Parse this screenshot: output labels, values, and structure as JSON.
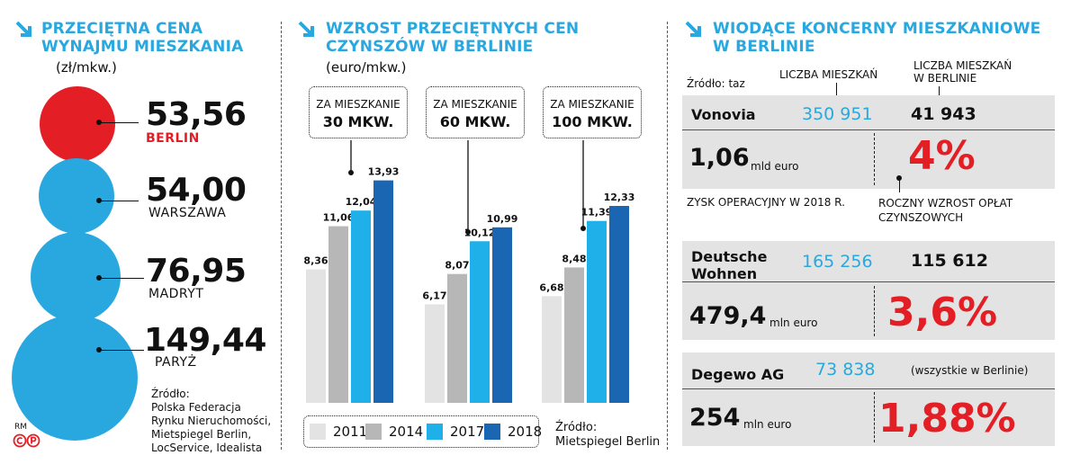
{
  "colors": {
    "blue": "#29a8e0",
    "red": "#e31e24",
    "bar2011": "#e3e3e3",
    "bar2014": "#b7b7b7",
    "bar2017": "#1fb0ea",
    "bar2018": "#1a66b2"
  },
  "panel1": {
    "title_l1": "PRZECIĘTNA CENA",
    "title_l2": "WYNAJMU MIESZKANIA",
    "unit": "(zł/mkw.)",
    "cities": [
      {
        "value": "53,56",
        "name": "BERLIN"
      },
      {
        "value": "54,00",
        "name": "WARSZAWA"
      },
      {
        "value": "76,95",
        "name": "MADRYT"
      },
      {
        "value": "149,44",
        "name": "PARYŻ"
      }
    ],
    "source": [
      "Źródło:",
      "Polska Federacja",
      "Rynku Nieruchomości,",
      "Mietspiegel Berlin,",
      "LocService, Idealista"
    ],
    "credit": "RM",
    "copyright_icon": "copyright-p-icon"
  },
  "panel2": {
    "title_l1": "WZROST PRZECIĘTNYCH CEN",
    "title_l2": "CZYNSZÓW W BERLINIE",
    "unit": "(euro/mkw.)",
    "groups": [
      {
        "l1": "ZA MIESZKANIE",
        "l2": "30 MKW."
      },
      {
        "l1": "ZA MIESZKANIE",
        "l2": "60 MKW."
      },
      {
        "l1": "ZA MIESZKANIE",
        "l2": "100 MKW."
      }
    ],
    "legend": [
      "2011",
      "2014",
      "2017",
      "2018"
    ],
    "source_l1": "Źródło:",
    "source_l2": "Mietspiegel Berlin"
  },
  "chart_data": [
    {
      "type": "bubble",
      "categories": [
        "BERLIN",
        "WARSZAWA",
        "MADRYT",
        "PARYŻ"
      ],
      "values": [
        53.56,
        54.0,
        76.95,
        149.44
      ],
      "title": "PRZECIĘTNA CENA WYNAJMU MIESZKANIA",
      "unit": "(zł/mkw.)"
    },
    {
      "type": "bar",
      "title": "WZROST PRZECIĘTNYCH CEN CZYNSZÓW W BERLINIE",
      "unit": "(euro/mkw.)",
      "categories": [
        "ZA MIESZKANIE 30 MKW.",
        "ZA MIESZKANIE 60 MKW.",
        "ZA MIESZKANIE 100 MKW."
      ],
      "series": [
        {
          "name": "2011",
          "values": [
            8.36,
            6.17,
            6.68
          ],
          "labels": [
            "8,36",
            "6,17",
            "6,68"
          ]
        },
        {
          "name": "2014",
          "values": [
            11.06,
            8.07,
            8.48
          ],
          "labels": [
            "11,06",
            "8,07",
            "8,48"
          ]
        },
        {
          "name": "2017",
          "values": [
            12.04,
            10.12,
            11.39
          ],
          "labels": [
            "12,04",
            "10,12",
            "11,39"
          ]
        },
        {
          "name": "2018",
          "values": [
            13.93,
            10.99,
            12.33
          ],
          "labels": [
            "13,93",
            "10,99",
            "12,33"
          ]
        }
      ],
      "ylim": [
        0,
        14
      ],
      "legend_position": "bottom"
    }
  ],
  "panel3": {
    "title_l1": "WIODĄCE KONCERNY MIESZKANIOWE",
    "title_l2": "W BERLINIE",
    "source": "Źródło: taz",
    "col1": "LICZBA MIESZKAŃ",
    "col2_l1": "LICZBA MIESZKAŃ",
    "col2_l2": "W BERLINIE",
    "profit_note": "ZYSK OPERACYJNY W 2018 R.",
    "growth_note_l1": "ROCZNY WZROST OPŁAT",
    "growth_note_l2": "CZYNSZOWYCH",
    "companies": [
      {
        "name_l1": "Vonovia",
        "name_l2": "",
        "flats": "350 951",
        "berlin": "41 943",
        "profit": "1,06",
        "profit_unit": "mld euro",
        "growth": "4%"
      },
      {
        "name_l1": "Deutsche",
        "name_l2": "Wohnen",
        "flats": "165 256",
        "berlin": "115 612",
        "profit": "479,4",
        "profit_unit": "mln euro",
        "growth": "3,6%"
      },
      {
        "name_l1": "Degewo AG",
        "name_l2": "",
        "flats": "73 838",
        "berlin": "(wszystkie w Berlinie)",
        "profit": "254",
        "profit_unit": "mln euro",
        "growth": "1,88%"
      }
    ]
  }
}
